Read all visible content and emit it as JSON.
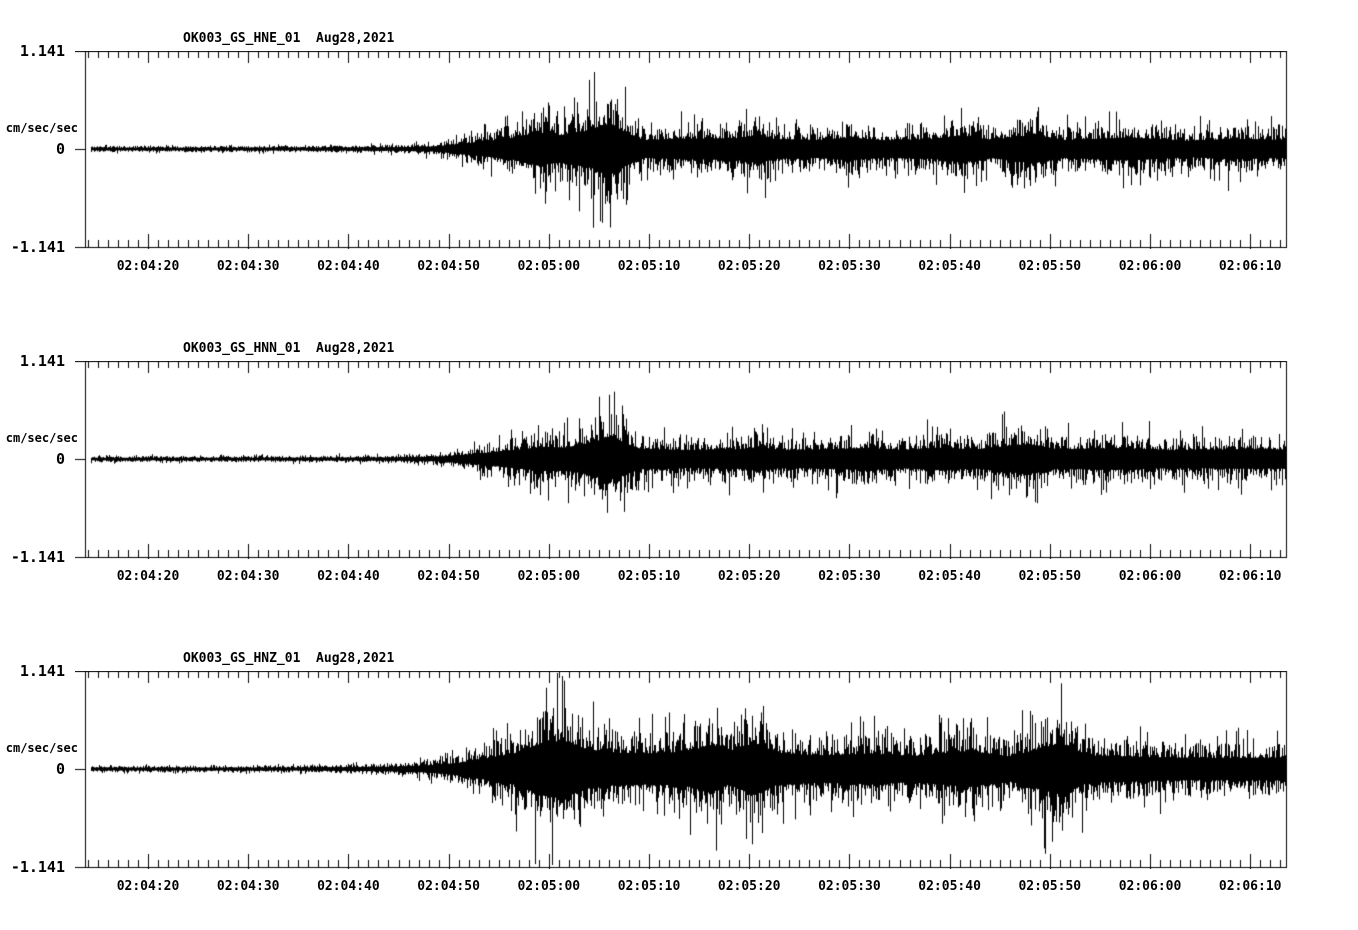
{
  "page": {
    "background": "#ffffff",
    "trace_color": "#000000",
    "text_color": "#000000"
  },
  "chart_data": [
    {
      "type": "line",
      "subtype": "seismogram-waveform",
      "title": "OK003_GS_HNE_01  Aug28,2021",
      "station_channel": "OK003_GS_HNE_01",
      "date": "Aug28,2021",
      "ylabel": "cm/sec/sec",
      "ylim": [
        -1.141,
        1.141
      ],
      "ytick_labels": [
        "1.141",
        "0",
        "-1.141"
      ],
      "ytick_values": [
        1.141,
        0,
        -1.141
      ],
      "xtick_labels": [
        "02:04:20",
        "02:04:30",
        "02:04:40",
        "02:04:50",
        "02:05:00",
        "02:05:10",
        "02:05:20",
        "02:05:30",
        "02:05:40",
        "02:05:50",
        "02:06:00",
        "02:06:10"
      ],
      "x_major_interval_seconds": 10,
      "x_minor_interval_seconds": 1,
      "grid": false,
      "legend": "none",
      "envelope_frac_amp": [
        [
          0.0,
          0.048
        ],
        [
          0.2,
          0.052
        ],
        [
          0.26,
          0.065
        ],
        [
          0.29,
          0.09
        ],
        [
          0.32,
          0.22
        ],
        [
          0.355,
          0.38
        ],
        [
          0.375,
          0.6
        ],
        [
          0.395,
          0.5
        ],
        [
          0.42,
          0.68
        ],
        [
          0.437,
          0.95
        ],
        [
          0.45,
          0.6
        ],
        [
          0.465,
          0.33
        ],
        [
          0.5,
          0.38
        ],
        [
          0.545,
          0.4
        ],
        [
          0.56,
          0.52
        ],
        [
          0.575,
          0.36
        ],
        [
          0.61,
          0.33
        ],
        [
          0.635,
          0.42
        ],
        [
          0.665,
          0.32
        ],
        [
          0.705,
          0.36
        ],
        [
          0.73,
          0.5
        ],
        [
          0.755,
          0.34
        ],
        [
          0.79,
          0.52
        ],
        [
          0.815,
          0.33
        ],
        [
          0.87,
          0.42
        ],
        [
          0.92,
          0.3
        ],
        [
          0.955,
          0.38
        ],
        [
          1.0,
          0.33
        ]
      ],
      "seed": 3
    },
    {
      "type": "line",
      "subtype": "seismogram-waveform",
      "title": "OK003_GS_HNN_01  Aug28,2021",
      "station_channel": "OK003_GS_HNN_01",
      "date": "Aug28,2021",
      "ylabel": "cm/sec/sec",
      "ylim": [
        -1.141,
        1.141
      ],
      "ytick_labels": [
        "1.141",
        "0",
        "-1.141"
      ],
      "ytick_values": [
        1.141,
        0,
        -1.141
      ],
      "xtick_labels": [
        "02:04:20",
        "02:04:30",
        "02:04:40",
        "02:04:50",
        "02:05:00",
        "02:05:10",
        "02:05:20",
        "02:05:30",
        "02:05:40",
        "02:05:50",
        "02:06:00",
        "02:06:10"
      ],
      "x_major_interval_seconds": 10,
      "x_minor_interval_seconds": 1,
      "grid": false,
      "legend": "none",
      "envelope_frac_amp": [
        [
          0.0,
          0.045
        ],
        [
          0.2,
          0.05
        ],
        [
          0.26,
          0.06
        ],
        [
          0.29,
          0.08
        ],
        [
          0.315,
          0.15
        ],
        [
          0.345,
          0.28
        ],
        [
          0.38,
          0.44
        ],
        [
          0.4,
          0.42
        ],
        [
          0.42,
          0.58
        ],
        [
          0.435,
          0.8
        ],
        [
          0.447,
          0.62
        ],
        [
          0.462,
          0.38
        ],
        [
          0.5,
          0.33
        ],
        [
          0.545,
          0.36
        ],
        [
          0.56,
          0.44
        ],
        [
          0.58,
          0.33
        ],
        [
          0.62,
          0.36
        ],
        [
          0.65,
          0.4
        ],
        [
          0.68,
          0.34
        ],
        [
          0.715,
          0.42
        ],
        [
          0.74,
          0.35
        ],
        [
          0.785,
          0.55
        ],
        [
          0.81,
          0.36
        ],
        [
          0.86,
          0.4
        ],
        [
          0.91,
          0.32
        ],
        [
          0.96,
          0.36
        ],
        [
          1.0,
          0.35
        ]
      ],
      "seed": 7
    },
    {
      "type": "line",
      "subtype": "seismogram-waveform",
      "title": "OK003_GS_HNZ_01  Aug28,2021",
      "station_channel": "OK003_GS_HNZ_01",
      "date": "Aug28,2021",
      "ylabel": "cm/sec/sec",
      "ylim": [
        -1.141,
        1.141
      ],
      "ytick_labels": [
        "1.141",
        "0",
        "-1.141"
      ],
      "ytick_values": [
        1.141,
        0,
        -1.141
      ],
      "xtick_labels": [
        "02:04:20",
        "02:04:30",
        "02:04:40",
        "02:04:50",
        "02:05:00",
        "02:05:10",
        "02:05:20",
        "02:05:30",
        "02:05:40",
        "02:05:50",
        "02:06:00",
        "02:06:10"
      ],
      "x_major_interval_seconds": 10,
      "x_minor_interval_seconds": 1,
      "grid": false,
      "legend": "none",
      "envelope_frac_amp": [
        [
          0.0,
          0.05
        ],
        [
          0.18,
          0.055
        ],
        [
          0.25,
          0.08
        ],
        [
          0.285,
          0.13
        ],
        [
          0.31,
          0.22
        ],
        [
          0.335,
          0.4
        ],
        [
          0.36,
          0.6
        ],
        [
          0.383,
          1.0
        ],
        [
          0.4,
          1.02
        ],
        [
          0.418,
          0.72
        ],
        [
          0.44,
          0.6
        ],
        [
          0.468,
          0.56
        ],
        [
          0.5,
          0.62
        ],
        [
          0.52,
          0.88
        ],
        [
          0.535,
          0.58
        ],
        [
          0.558,
          0.95
        ],
        [
          0.575,
          0.6
        ],
        [
          0.61,
          0.5
        ],
        [
          0.655,
          0.56
        ],
        [
          0.69,
          0.48
        ],
        [
          0.735,
          0.66
        ],
        [
          0.77,
          0.46
        ],
        [
          0.812,
          0.95
        ],
        [
          0.835,
          0.5
        ],
        [
          0.88,
          0.44
        ],
        [
          0.93,
          0.4
        ],
        [
          1.0,
          0.42
        ]
      ],
      "seed": 11
    }
  ]
}
